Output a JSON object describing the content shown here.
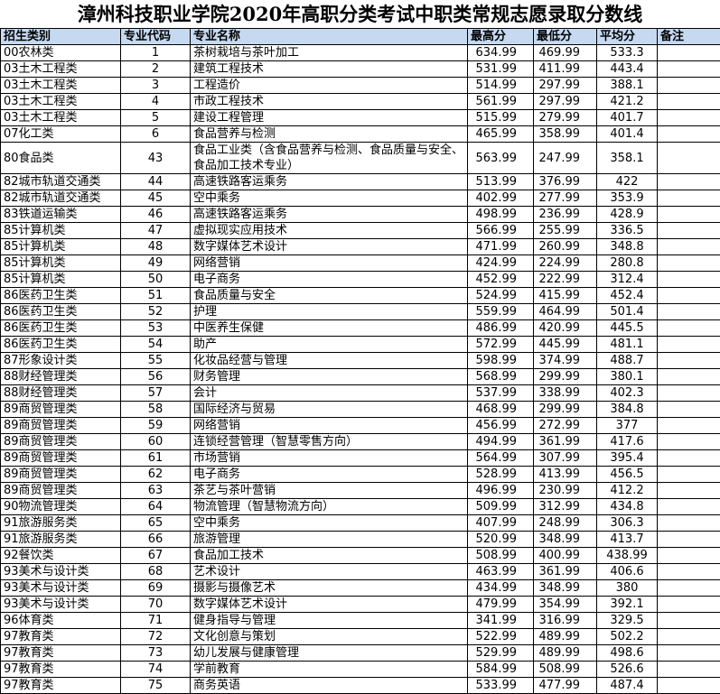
{
  "title": "漳州科技职业学院2020年高职分类考试中职类常规志愿录取分数线",
  "table": {
    "header": [
      "招生类别",
      "专业代码",
      "专业名称",
      "最高分",
      "最低分",
      "平均分",
      "备注"
    ],
    "rows": [
      [
        "00农林类",
        1,
        "茶树栽培与茶叶加工",
        634.99,
        469.99,
        533.3
      ],
      [
        "03土木工程类",
        2,
        "建筑工程技术",
        531.99,
        411.99,
        443.4
      ],
      [
        "03土木工程类",
        3,
        "工程造价",
        514.99,
        297.99,
        388.1
      ],
      [
        "03土木工程类",
        4,
        "市政工程技术",
        561.99,
        297.99,
        421.2
      ],
      [
        "03土木工程类",
        5,
        "建设工程管理",
        515.99,
        279.99,
        401.7
      ],
      [
        "07化工类",
        6,
        "食品营养与检测",
        465.99,
        358.99,
        401.4
      ],
      [
        "80食品类",
        43,
        "食品工业类（含食品营养与检测、食品质量与安全、食品加工技术专业）",
        563.99,
        247.99,
        358.1
      ],
      [
        "82城市轨道交通类",
        44,
        "高速铁路客运乘务",
        513.99,
        376.99,
        422
      ],
      [
        "82城市轨道交通类",
        45,
        "空中乘务",
        402.99,
        277.99,
        353.9
      ],
      [
        "83铁道运输类",
        46,
        "高速铁路客运乘务",
        498.99,
        236.99,
        428.9
      ],
      [
        "85计算机类",
        47,
        "虚拟现实应用技术",
        566.99,
        255.99,
        336.5
      ],
      [
        "85计算机类",
        48,
        "数字媒体艺术设计",
        471.99,
        260.99,
        348.8
      ],
      [
        "85计算机类",
        49,
        "网络营销",
        424.99,
        224.99,
        280.8
      ],
      [
        "85计算机类",
        50,
        "电子商务",
        452.99,
        222.99,
        312.4
      ],
      [
        "86医药卫生类",
        51,
        "食品质量与安全",
        524.99,
        415.99,
        452.4
      ],
      [
        "86医药卫生类",
        52,
        "护理",
        559.99,
        464.99,
        501.4
      ],
      [
        "86医药卫生类",
        53,
        "中医养生保健",
        486.99,
        420.99,
        445.5
      ],
      [
        "86医药卫生类",
        54,
        "助产",
        572.99,
        445.99,
        481.1
      ],
      [
        "87形象设计类",
        55,
        "化妆品经营与管理",
        598.99,
        374.99,
        488.7
      ],
      [
        "88财经管理类",
        56,
        "财务管理",
        568.99,
        299.99,
        380.1
      ],
      [
        "88财经管理类",
        57,
        "会计",
        537.99,
        338.99,
        402.3
      ],
      [
        "89商贸管理类",
        58,
        "国际经济与贸易",
        468.99,
        299.99,
        384.8
      ],
      [
        "89商贸管理类",
        59,
        "网络营销",
        456.99,
        272.99,
        377
      ],
      [
        "89商贸管理类",
        60,
        "连锁经营管理（智慧零售方向）",
        494.99,
        361.99,
        417.6
      ],
      [
        "89商贸管理类",
        61,
        "市场营销",
        564.99,
        307.99,
        395.4
      ],
      [
        "89商贸管理类",
        62,
        "电子商务",
        528.99,
        413.99,
        456.5
      ],
      [
        "89商贸管理类",
        63,
        "茶艺与茶叶营销",
        496.99,
        230.99,
        412.2
      ],
      [
        "90物流管理类",
        64,
        "物流管理（智慧物流方向）",
        509.99,
        312.99,
        434.8
      ],
      [
        "91旅游服务类",
        65,
        "空中乘务",
        407.99,
        248.99,
        306.3
      ],
      [
        "91旅游服务类",
        66,
        "旅游管理",
        520.99,
        348.99,
        413.7
      ],
      [
        "92餐饮类",
        67,
        "食品加工技术",
        508.99,
        400.99,
        438.99
      ],
      [
        "93美术与设计类",
        68,
        "艺术设计",
        463.99,
        361.99,
        406.6
      ],
      [
        "93美术与设计类",
        69,
        "摄影与摄像艺术",
        434.99,
        348.99,
        380
      ],
      [
        "93美术与设计类",
        70,
        "数字媒体艺术设计",
        479.99,
        354.99,
        392.1
      ],
      [
        "96体育类",
        71,
        "健身指导与管理",
        341.99,
        316.99,
        329.5
      ],
      [
        "97教育类",
        72,
        "文化创意与策划",
        522.99,
        489.99,
        502.2
      ],
      [
        "97教育类",
        73,
        "幼儿发展与健康管理",
        529.99,
        489.99,
        498.6
      ],
      [
        "97教育类",
        74,
        "学前教育",
        584.99,
        508.99,
        526.6
      ],
      [
        "97教育类",
        75,
        "商务英语",
        533.99,
        477.99,
        487.4
      ]
    ]
  }
}
